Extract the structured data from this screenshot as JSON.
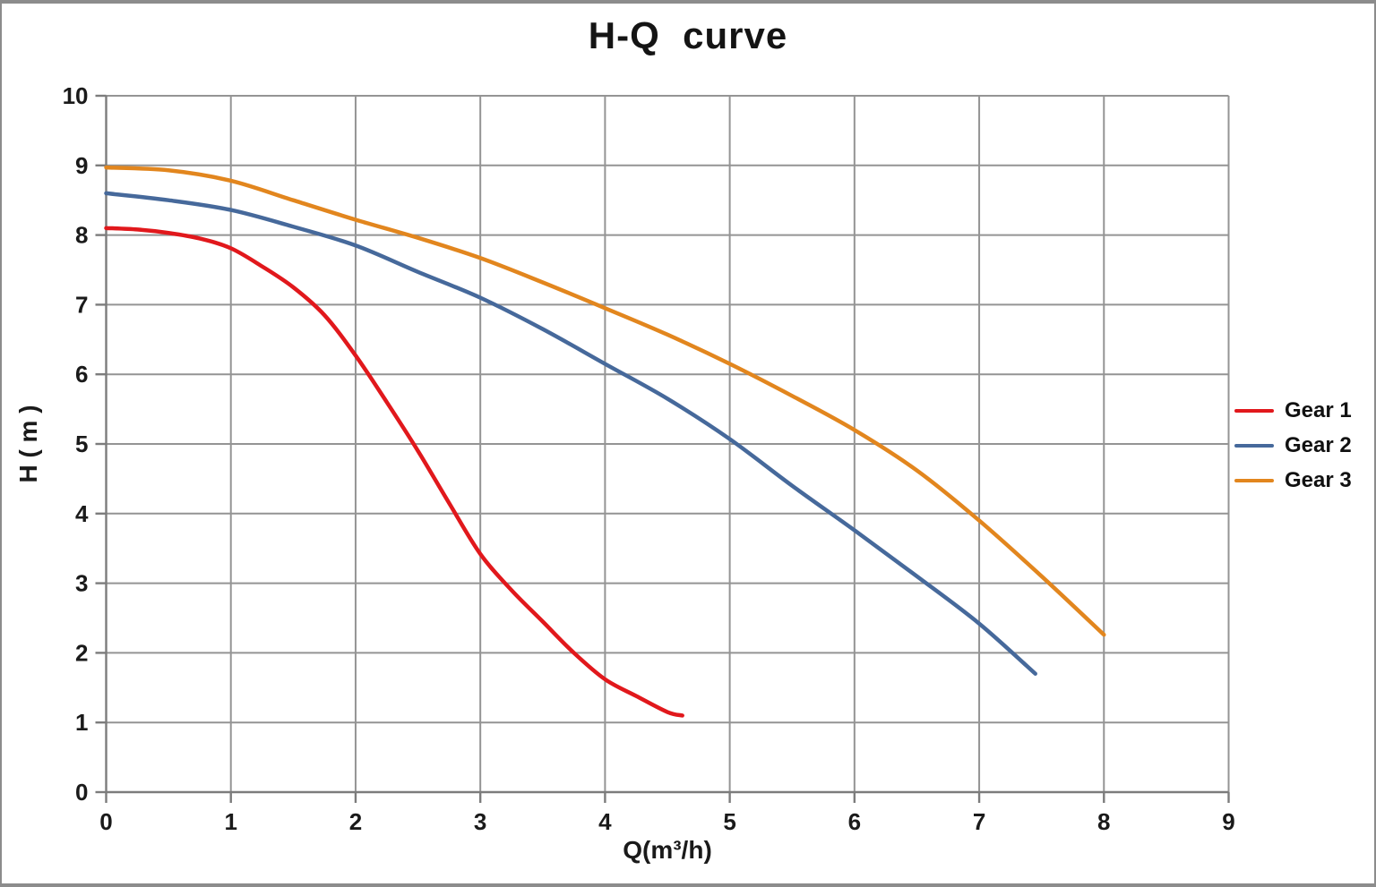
{
  "frame": {
    "border_color": "#8c8c8c",
    "background": "#ffffff"
  },
  "chart_data": {
    "type": "line",
    "title": "H-Q  curve",
    "xlabel": "Q(m³/h)",
    "ylabel": "H ( m )",
    "xlim": [
      0,
      9
    ],
    "ylim": [
      0,
      10
    ],
    "x_ticks": [
      0,
      1,
      2,
      3,
      4,
      5,
      6,
      7,
      8,
      9
    ],
    "y_ticks": [
      0,
      1,
      2,
      3,
      4,
      5,
      6,
      7,
      8,
      9,
      10
    ],
    "grid": true,
    "legend_position": "right-middle",
    "colors": {
      "grid": "#949494",
      "axis": "#7c7c7c",
      "text": "#1a1a1a",
      "title": "#141414"
    },
    "series": [
      {
        "name": "Gear 1",
        "color": "#e1181c",
        "x": [
          0,
          0.25,
          0.5,
          0.75,
          1,
          1.25,
          1.5,
          1.75,
          2,
          2.25,
          2.5,
          2.75,
          3,
          3.25,
          3.5,
          3.75,
          4,
          4.25,
          4.5,
          4.62
        ],
        "y": [
          8.1,
          8.08,
          8.03,
          7.95,
          7.81,
          7.55,
          7.25,
          6.85,
          6.27,
          5.6,
          4.9,
          4.15,
          3.42,
          2.9,
          2.45,
          2.0,
          1.62,
          1.38,
          1.15,
          1.1
        ]
      },
      {
        "name": "Gear 2",
        "color": "#46699b",
        "x": [
          0,
          0.5,
          1,
          1.5,
          2,
          2.5,
          3,
          3.5,
          4,
          4.5,
          5,
          5.5,
          6,
          6.5,
          7,
          7.45
        ],
        "y": [
          8.6,
          8.5,
          8.36,
          8.12,
          7.85,
          7.47,
          7.1,
          6.65,
          6.15,
          5.65,
          5.07,
          4.4,
          3.76,
          3.1,
          2.42,
          1.7
        ]
      },
      {
        "name": "Gear 3",
        "color": "#e2861e",
        "x": [
          0,
          0.5,
          1,
          1.5,
          2,
          2.5,
          3,
          3.5,
          4,
          4.5,
          5,
          5.5,
          6,
          6.5,
          7,
          7.5,
          8
        ],
        "y": [
          8.97,
          8.93,
          8.78,
          8.5,
          8.22,
          7.96,
          7.67,
          7.32,
          6.95,
          6.57,
          6.15,
          5.69,
          5.2,
          4.62,
          3.9,
          3.1,
          2.26
        ]
      }
    ]
  }
}
